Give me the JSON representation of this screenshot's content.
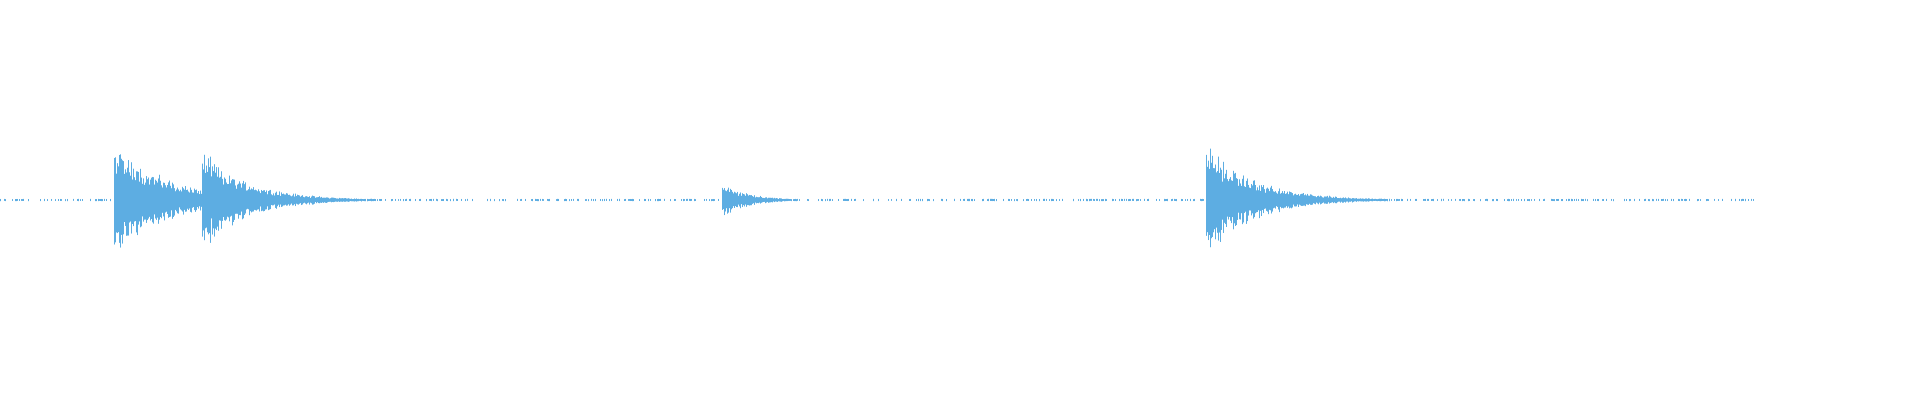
{
  "chart_data": {
    "type": "area",
    "title": "",
    "xlabel": "",
    "ylabel": "",
    "ylim": [
      -1,
      1
    ],
    "grid": false,
    "legend": "none",
    "color": "#5dade2",
    "background": "#ffffff",
    "duration_fraction_drawn": 0.917,
    "events": [
      {
        "onset": 0.059,
        "peak_amplitude": 0.27,
        "decay": 0.06
      },
      {
        "onset": 0.105,
        "peak_amplitude": 0.18,
        "decay": 0.05
      },
      {
        "onset": 0.376,
        "peak_amplitude": 0.08,
        "decay": 0.03
      },
      {
        "onset": 0.628,
        "peak_amplitude": 0.25,
        "decay": 0.055
      }
    ],
    "noise_floor": 0.004
  }
}
